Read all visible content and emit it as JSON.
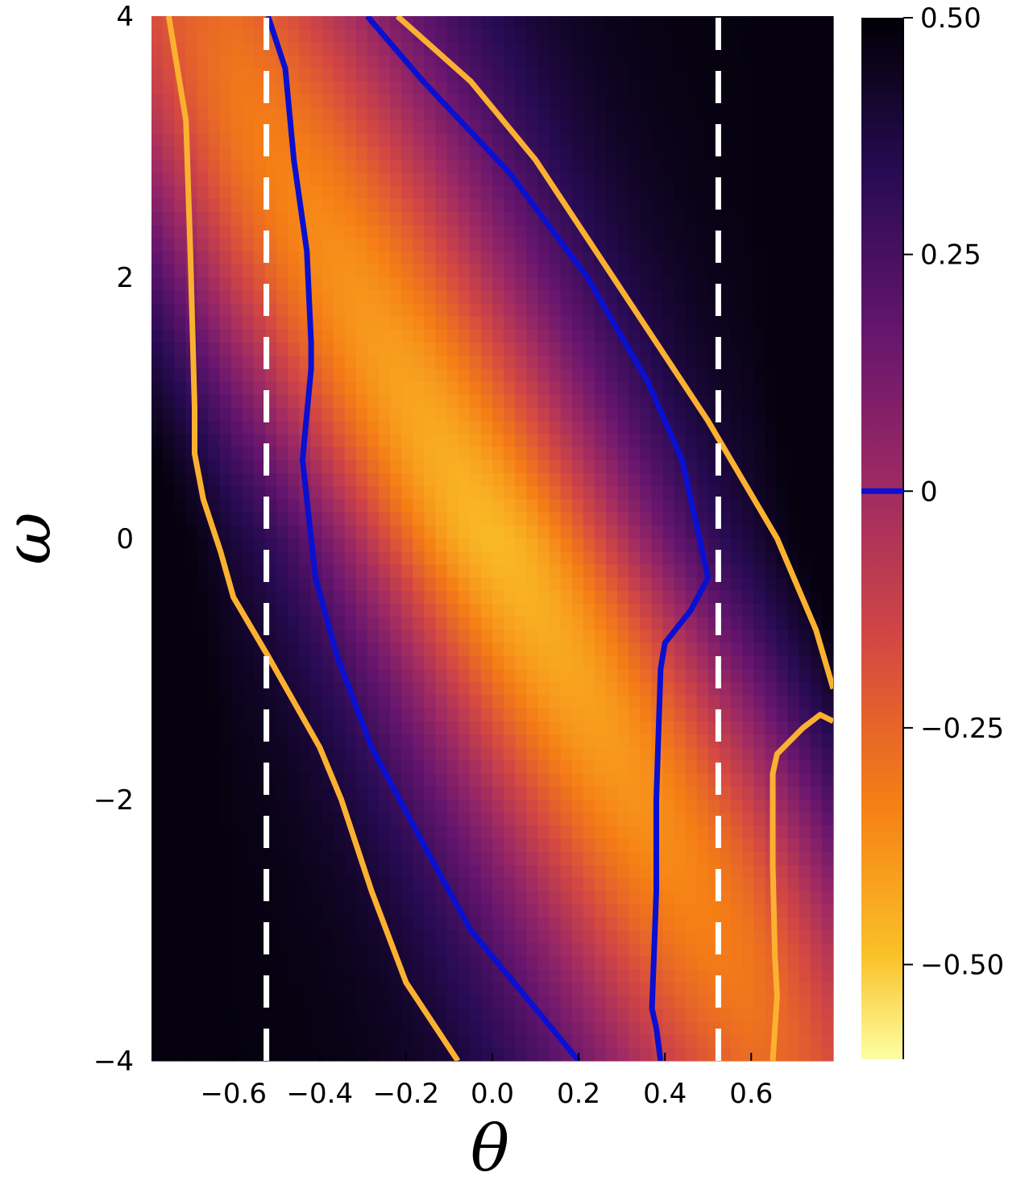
{
  "chart_data": {
    "type": "heatmap",
    "title": "",
    "xlabel": "θ",
    "ylabel": "ω",
    "xlim": [
      -0.79,
      0.79
    ],
    "ylim": [
      -4,
      4
    ],
    "x_ticks": [
      -0.6,
      -0.4,
      -0.2,
      0.0,
      0.2,
      0.4,
      0.6
    ],
    "x_tick_labels": [
      "−0.6",
      "−0.4",
      "−0.2",
      "0.0",
      "0.2",
      "0.4",
      "0.6"
    ],
    "y_ticks": [
      -4,
      -2,
      0,
      2,
      4
    ],
    "y_tick_labels": [
      "−4",
      "−2",
      "0",
      "2",
      "4"
    ],
    "colorbar": {
      "colormap": "inferno (reversed)",
      "range": [
        -0.6,
        0.5
      ],
      "ticks": [
        0.5,
        0.25,
        0,
        -0.25,
        -0.5
      ],
      "tick_labels": [
        "0.50",
        "0.25",
        "0",
        "−0.25",
        "−0.50"
      ],
      "marked_level": {
        "value": 0,
        "color": "#0a10d0"
      }
    },
    "heatmap_field": {
      "description": "value decreases toward a band through (0,0)",
      "band_center": {
        "theta_at_omega_0": 0.0,
        "slope_dtheta_domega": -0.06
      },
      "min_value": -0.47,
      "max_value": 0.48
    },
    "series": [
      {
        "style": "contour",
        "color": "#fbb130",
        "segments": [
          [
            [
              -0.75,
              4.0
            ],
            [
              -0.71,
              3.2
            ],
            [
              -0.7,
              2.2
            ],
            [
              -0.69,
              1.0
            ],
            [
              -0.69,
              0.65
            ],
            [
              -0.67,
              0.3
            ],
            [
              -0.63,
              -0.1
            ],
            [
              -0.6,
              -0.45
            ],
            [
              -0.52,
              -0.9
            ],
            [
              -0.4,
              -1.6
            ],
            [
              -0.35,
              -2.0
            ],
            [
              -0.28,
              -2.7
            ],
            [
              -0.2,
              -3.4
            ],
            [
              -0.08,
              -4.0
            ]
          ],
          [
            [
              -0.22,
              4.0
            ],
            [
              -0.05,
              3.5
            ],
            [
              0.1,
              2.9
            ],
            [
              0.22,
              2.3
            ],
            [
              0.36,
              1.6
            ],
            [
              0.5,
              0.9
            ],
            [
              0.66,
              0.0
            ],
            [
              0.75,
              -0.7
            ],
            [
              0.79,
              -1.15
            ]
          ],
          [
            [
              0.79,
              -1.4
            ],
            [
              0.76,
              -1.35
            ],
            [
              0.72,
              -1.45
            ],
            [
              0.69,
              -1.55
            ],
            [
              0.66,
              -1.65
            ],
            [
              0.65,
              -1.8
            ],
            [
              0.65,
              -2.5
            ],
            [
              0.655,
              -3.2
            ],
            [
              0.66,
              -3.5
            ],
            [
              0.65,
              -4.0
            ]
          ]
        ]
      },
      {
        "style": "contour",
        "color": "#0a10d0",
        "segments": [
          [
            [
              -0.52,
              4.0
            ],
            [
              -0.48,
              3.6
            ],
            [
              -0.46,
              2.9
            ],
            [
              -0.43,
              2.2
            ],
            [
              -0.42,
              1.5
            ],
            [
              -0.42,
              1.3
            ],
            [
              -0.44,
              0.6
            ],
            [
              -0.41,
              -0.3
            ],
            [
              -0.36,
              -0.9
            ],
            [
              -0.28,
              -1.6
            ],
            [
              -0.15,
              -2.4
            ],
            [
              -0.05,
              -3.0
            ],
            [
              0.1,
              -3.6
            ],
            [
              0.2,
              -4.0
            ]
          ],
          [
            [
              -0.29,
              4.0
            ],
            [
              -0.16,
              3.5
            ],
            [
              0.04,
              2.8
            ],
            [
              0.22,
              2.0
            ],
            [
              0.36,
              1.2
            ],
            [
              0.44,
              0.6
            ],
            [
              0.48,
              0.0
            ],
            [
              0.5,
              -0.3
            ],
            [
              0.46,
              -0.55
            ],
            [
              0.4,
              -0.8
            ],
            [
              0.39,
              -1.0
            ],
            [
              0.38,
              -2.0
            ],
            [
              0.38,
              -2.7
            ],
            [
              0.37,
              -3.6
            ],
            [
              0.38,
              -3.75
            ],
            [
              0.39,
              -4.0
            ]
          ]
        ]
      },
      {
        "style": "dashed",
        "color": "#ffffff",
        "segments": [
          [
            [
              -0.5236,
              -4.0
            ],
            [
              -0.5236,
              4.0
            ]
          ],
          [
            [
              0.5236,
              -4.0
            ],
            [
              0.5236,
              4.0
            ]
          ]
        ]
      }
    ]
  }
}
